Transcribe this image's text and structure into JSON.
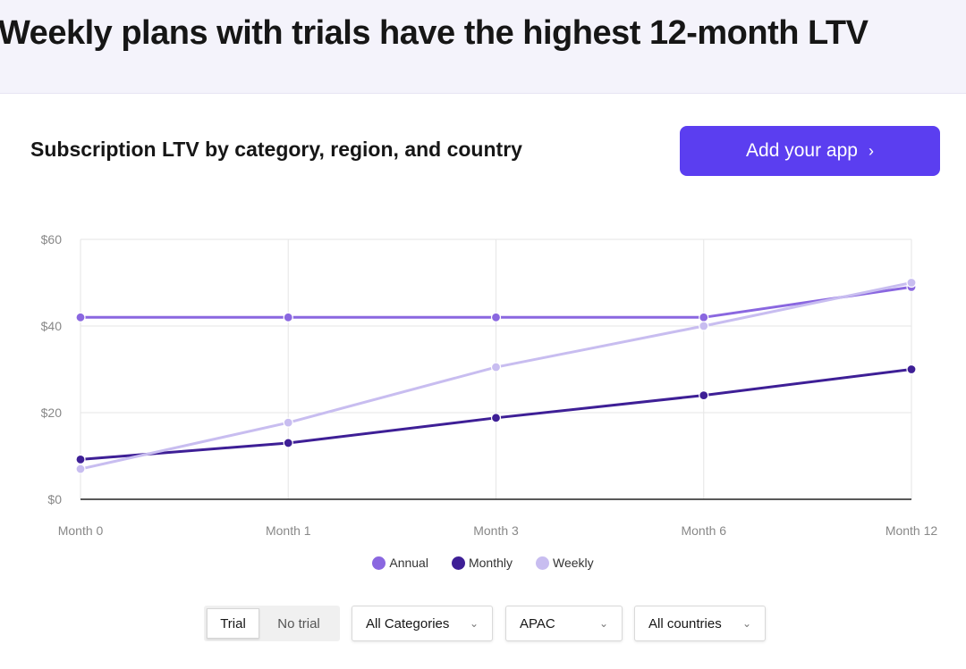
{
  "headline": "Weekly plans with trials have the highest 12-month LTV",
  "subtitle": "Subscription LTV by category, region, and country",
  "cta": {
    "label": "Add your app",
    "icon": "chevron-right-icon"
  },
  "colors": {
    "accent": "#5b3ef0",
    "annual": "#8a67e0",
    "monthly": "#3e1f96",
    "weekly": "#c8bdf0"
  },
  "chart_data": {
    "type": "line",
    "title": "",
    "xlabel": "",
    "ylabel": "",
    "categories": [
      "Month 0",
      "Month 1",
      "Month 3",
      "Month 6",
      "Month 12"
    ],
    "y_ticks": [
      "$0",
      "$20",
      "$40",
      "$60"
    ],
    "ylim": [
      0,
      60
    ],
    "grid": true,
    "legend_position": "bottom",
    "series": [
      {
        "name": "Annual",
        "color": "#8a67e0",
        "values": [
          42,
          42,
          42,
          42,
          49
        ]
      },
      {
        "name": "Monthly",
        "color": "#3e1f96",
        "values": [
          9.2,
          13,
          18.8,
          24,
          30
        ]
      },
      {
        "name": "Weekly",
        "color": "#c8bdf0",
        "values": [
          7,
          17.7,
          30.5,
          40,
          50
        ]
      }
    ]
  },
  "filters": {
    "trial_options": [
      "Trial",
      "No trial"
    ],
    "trial_selected": "Trial",
    "category": "All Categories",
    "region": "APAC",
    "country": "All countries"
  }
}
